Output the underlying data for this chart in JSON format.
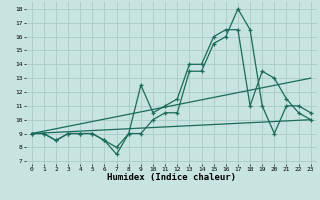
{
  "xlabel": "Humidex (Indice chaleur)",
  "background_color": "#c8e4e0",
  "grid_color": "#a8ccc8",
  "line_color": "#1a6b5a",
  "xlim": [
    -0.5,
    23.5
  ],
  "ylim": [
    6.8,
    18.5
  ],
  "yticks": [
    7,
    8,
    9,
    10,
    11,
    12,
    13,
    14,
    15,
    16,
    17,
    18
  ],
  "xticks": [
    0,
    1,
    2,
    3,
    4,
    5,
    6,
    7,
    8,
    9,
    10,
    11,
    12,
    13,
    14,
    15,
    16,
    17,
    18,
    19,
    20,
    21,
    22,
    23
  ],
  "series_jagged1_x": [
    0,
    1,
    2,
    3,
    4,
    5,
    6,
    7,
    8,
    9,
    10,
    11,
    12,
    13,
    14,
    15,
    16,
    17,
    18,
    19,
    20,
    21,
    22,
    23
  ],
  "series_jagged1_y": [
    9,
    9,
    8.5,
    9,
    9,
    9,
    8.5,
    7.5,
    9,
    9,
    10,
    10.5,
    10.5,
    13.5,
    13.5,
    15.5,
    16,
    18,
    16.5,
    11,
    9,
    11,
    11,
    10.5
  ],
  "series_jagged2_x": [
    0,
    1,
    2,
    3,
    4,
    5,
    6,
    7,
    8,
    9,
    10,
    11,
    12,
    13,
    14,
    15,
    16,
    17,
    18,
    19,
    20,
    21,
    22,
    23
  ],
  "series_jagged2_y": [
    9,
    9,
    8.5,
    9,
    9,
    9,
    8.5,
    8.0,
    9.0,
    12.5,
    10.5,
    11,
    11.5,
    14,
    14,
    16.0,
    16.5,
    16.5,
    11,
    13.5,
    13,
    11.5,
    10.5,
    10
  ],
  "series_line1_x": [
    0,
    23
  ],
  "series_line1_y": [
    9,
    10
  ],
  "series_line2_x": [
    0,
    23
  ],
  "series_line2_y": [
    9,
    13
  ]
}
